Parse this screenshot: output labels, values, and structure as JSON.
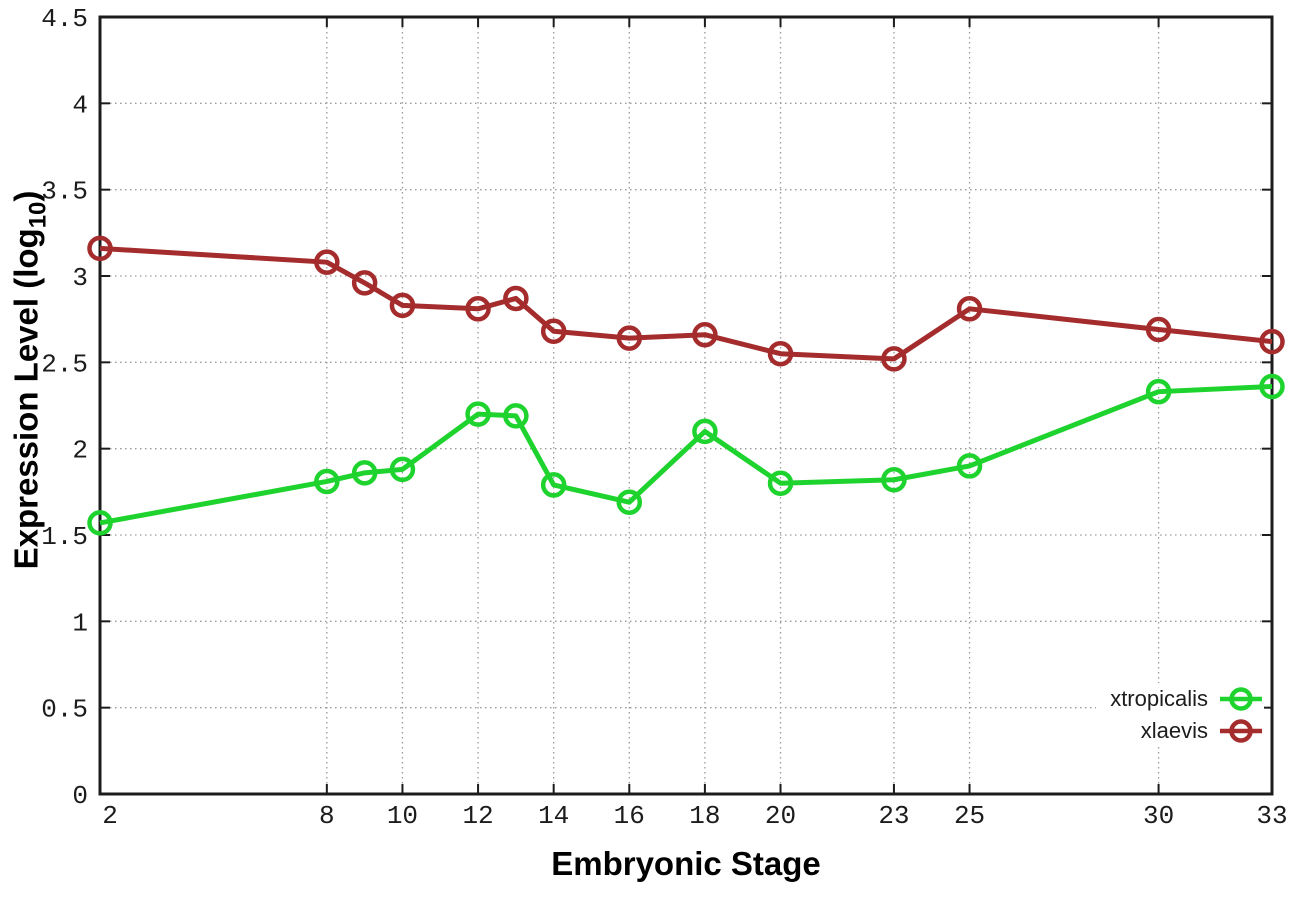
{
  "chart_data": {
    "type": "line",
    "title": "",
    "xlabel": "Embryonic Stage",
    "ylabel": "Expression Level (log10)",
    "ylabel_parts": {
      "prefix": "Expression Level (log",
      "sub": "10",
      "suffix": ")"
    },
    "x": [
      2,
      8,
      9,
      10,
      12,
      13,
      14,
      16,
      18,
      20,
      23,
      25,
      30,
      33
    ],
    "series": [
      {
        "name": "xtropicalis",
        "color": "#1ed32e",
        "values": [
          1.57,
          1.81,
          1.86,
          1.88,
          2.2,
          2.19,
          1.79,
          1.69,
          2.1,
          1.8,
          1.82,
          1.9,
          2.33,
          2.36
        ]
      },
      {
        "name": "xlaevis",
        "color": "#a52c2c",
        "values": [
          3.16,
          3.08,
          2.96,
          2.83,
          2.81,
          2.87,
          2.68,
          2.64,
          2.66,
          2.55,
          2.52,
          2.81,
          2.69,
          2.62
        ]
      }
    ],
    "xlim": [
      2,
      33
    ],
    "ylim": [
      0,
      4.5
    ],
    "x_ticks": [
      2,
      8,
      10,
      12,
      14,
      16,
      18,
      20,
      23,
      25,
      30,
      33
    ],
    "y_ticks": [
      0,
      0.5,
      1,
      1.5,
      2,
      2.5,
      3,
      3.5,
      4,
      4.5
    ],
    "grid": true,
    "grid_style": "dotted",
    "legend_position": "inside-bottom-right",
    "marker": "open-circle",
    "colors": {
      "axis": "#1c1c1c",
      "grid": "#9a9a9a",
      "background": "#ffffff"
    }
  }
}
